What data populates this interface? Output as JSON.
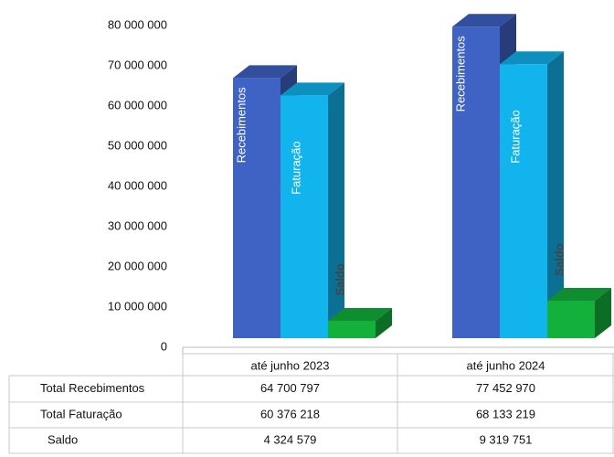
{
  "chart_data": {
    "type": "bar3d",
    "categories": [
      "até  junho 2023",
      "até junho 2024"
    ],
    "series": [
      {
        "name": "Total Recebimentos",
        "bar_label": "Recebimentos",
        "color": "#3e63c4",
        "values": [
          64700797,
          77452970
        ],
        "value_labels": [
          "64 700 797",
          "77 452 970"
        ]
      },
      {
        "name": "Total Faturação",
        "bar_label": "Faturação",
        "color": "#12b4ee",
        "values": [
          60376218,
          68133219
        ],
        "value_labels": [
          "60 376 218",
          "68 133 219"
        ]
      },
      {
        "name": "Saldo",
        "bar_label": "Saldo",
        "color": "#13b13c",
        "values": [
          4324579,
          9319751
        ],
        "value_labels": [
          "4 324 579",
          "9 319 751"
        ]
      }
    ],
    "ylim": [
      0,
      80000000
    ],
    "yticks": [
      0,
      {
        "value": 10000000,
        "label": "10 000 000"
      },
      {
        "value": 20000000,
        "label": "20 000 000"
      },
      {
        "value": 30000000,
        "label": "30 000 000"
      },
      {
        "value": 40000000,
        "label": "40 000 000"
      },
      {
        "value": 50000000,
        "label": "50 000 000"
      },
      {
        "value": 60000000,
        "label": "60 000 000"
      },
      {
        "value": 70000000,
        "label": "70 000 000"
      },
      {
        "value": 80000000,
        "label": "80 000 000"
      }
    ]
  }
}
